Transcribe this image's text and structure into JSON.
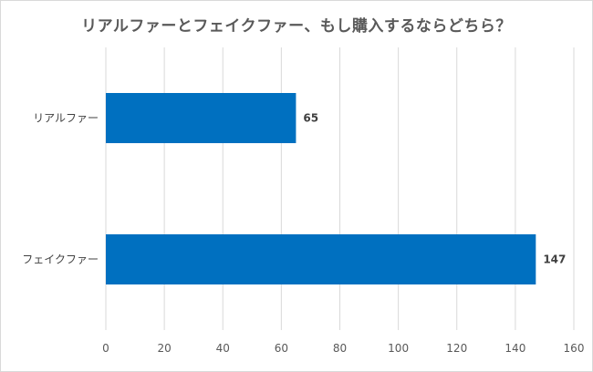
{
  "chart_data": {
    "type": "bar",
    "orientation": "horizontal",
    "title": "リアルファーとフェイクファー、もし購入するならどちら？",
    "categories": [
      "リアルファー",
      "フェイクファー"
    ],
    "values": [
      65,
      147
    ],
    "data_labels": [
      "65",
      "147"
    ],
    "xlim": [
      0,
      160
    ],
    "x_ticks": [
      0,
      20,
      40,
      60,
      80,
      100,
      120,
      140,
      160
    ],
    "grid": true,
    "legend": "none",
    "bar_color": "#0070C0"
  }
}
